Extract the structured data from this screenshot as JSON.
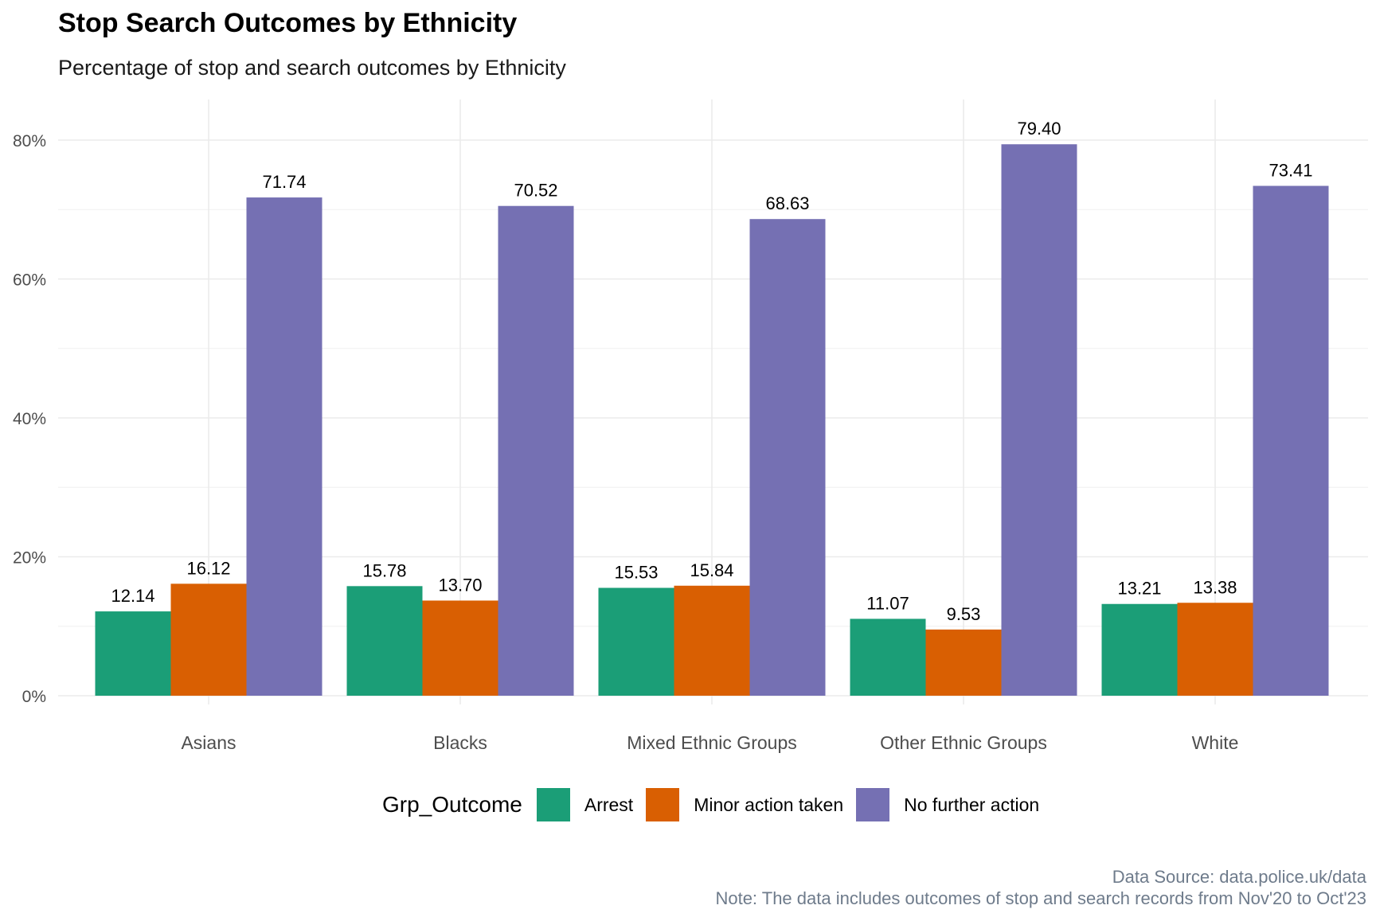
{
  "chart_data": {
    "type": "bar",
    "title": "Stop Search Outcomes by Ethnicity",
    "subtitle": "Percentage of stop and search outcomes by Ethnicity",
    "categories": [
      "Asians",
      "Blacks",
      "Mixed Ethnic Groups",
      "Other Ethnic Groups",
      "White"
    ],
    "series": [
      {
        "name": "Arrest",
        "color": "#1b9e77",
        "values": [
          12.14,
          15.78,
          15.53,
          11.07,
          13.21
        ],
        "labels": [
          "12.14",
          "15.78",
          "15.53",
          "11.07",
          "13.21"
        ]
      },
      {
        "name": "Minor action taken",
        "color": "#d95f02",
        "values": [
          16.12,
          13.7,
          15.84,
          9.53,
          13.38
        ],
        "labels": [
          "16.12",
          "13.70",
          "15.84",
          "9.53",
          "13.38"
        ]
      },
      {
        "name": "No further action",
        "color": "#7570b3",
        "values": [
          71.74,
          70.52,
          68.63,
          79.4,
          73.41
        ],
        "labels": [
          "71.74",
          "70.52",
          "68.63",
          "79.40",
          "73.41"
        ]
      }
    ],
    "ylim": [
      0,
      86
    ],
    "yticks": [
      0,
      20,
      40,
      60,
      80
    ],
    "ytick_labels": [
      "0%",
      "20%",
      "40%",
      "60%",
      "80%"
    ],
    "legend_title": "Grp_Outcome",
    "legend_position": "bottom",
    "grid": true
  },
  "caption": {
    "line1": "Data Source: data.police.uk/data",
    "line2": "Note: The data includes outcomes of stop and search records from Nov'20 to Oct'23"
  }
}
